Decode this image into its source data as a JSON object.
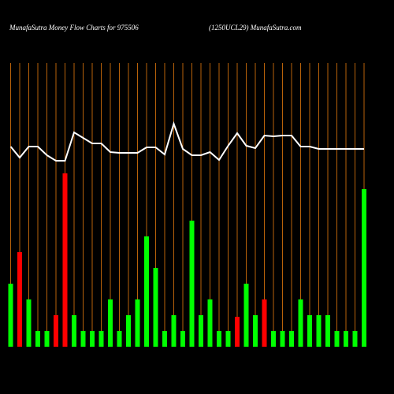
{
  "chart_data": {
    "type": "bar",
    "title": "MunafaSutra  Money Flow  Charts for 975506",
    "subtitle": "(1250UCL29) MunafaSutra.com",
    "categories": [
      null,
      null,
      null,
      null,
      null,
      null,
      null,
      null,
      null,
      null,
      null,
      null,
      null,
      null,
      null,
      null,
      null,
      null,
      null,
      null,
      null,
      null,
      null,
      null,
      null,
      null,
      null,
      null,
      null,
      null,
      null,
      null,
      null,
      null,
      null,
      null,
      null,
      null,
      null,
      null
    ],
    "ylim": [
      0,
      360
    ],
    "grid_color": "#b8620a",
    "series": [
      {
        "type": "bar",
        "values": [
          80,
          120,
          60,
          20,
          20,
          40,
          220,
          40,
          20,
          20,
          20,
          60,
          20,
          40,
          60,
          140,
          100,
          20,
          40,
          20,
          160,
          40,
          60,
          20,
          20,
          38,
          80,
          40,
          60,
          20,
          20,
          20,
          60,
          40,
          40,
          40,
          20,
          20,
          20,
          200
        ],
        "colors": [
          "#00ff00",
          "#ff0000",
          "#00ff00",
          "#00ff00",
          "#00ff00",
          "#ff0000",
          "#ff0000",
          "#00ff00",
          "#00ff00",
          "#00ff00",
          "#00ff00",
          "#00ff00",
          "#00ff00",
          "#00ff00",
          "#00ff00",
          "#00ff00",
          "#00ff00",
          "#00ff00",
          "#00ff00",
          "#00ff00",
          "#00ff00",
          "#00ff00",
          "#00ff00",
          "#00ff00",
          "#00ff00",
          "#ff0000",
          "#00ff00",
          "#00ff00",
          "#ff0000",
          "#00ff00",
          "#00ff00",
          "#00ff00",
          "#00ff00",
          "#00ff00",
          "#00ff00",
          "#00ff00",
          "#00ff00",
          "#00ff00",
          "#00ff00",
          "#00ff00"
        ]
      },
      {
        "type": "line",
        "color": "#ffffff",
        "values": [
          254,
          240,
          254,
          254,
          243,
          236,
          236,
          272,
          265,
          258,
          258,
          247,
          246,
          246,
          246,
          253,
          253,
          244,
          283,
          251,
          243,
          243,
          247,
          237,
          255,
          271,
          255,
          252,
          268,
          267,
          268,
          268,
          254,
          254,
          251,
          251,
          251,
          251,
          251,
          251
        ]
      }
    ]
  }
}
